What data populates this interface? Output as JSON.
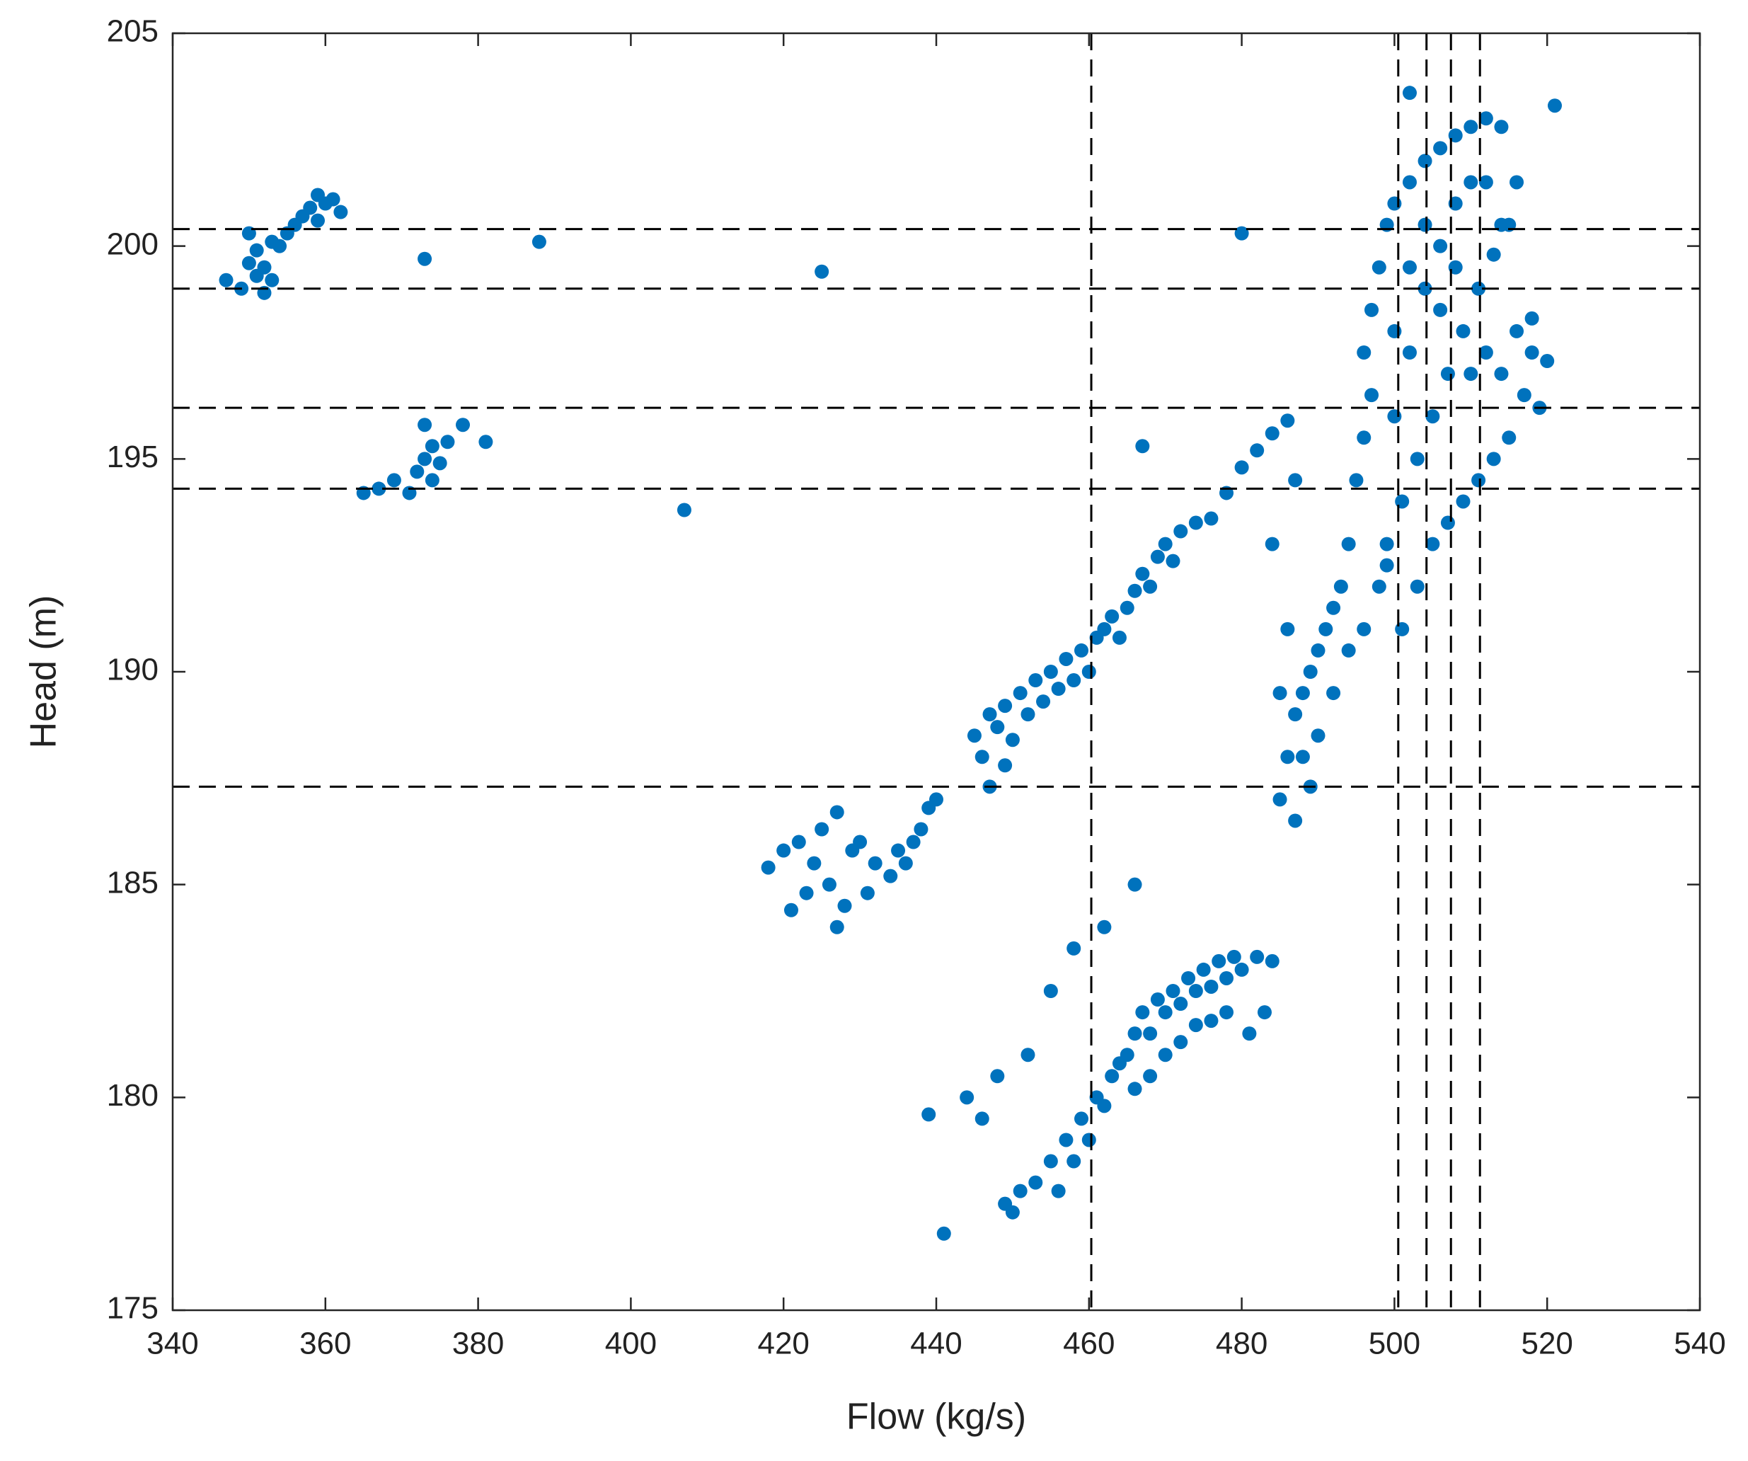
{
  "chart_data": {
    "type": "scatter",
    "xlabel": "Flow (kg/s)",
    "ylabel": "Head (m)",
    "color": "#0072bd",
    "xlim": [
      340,
      540
    ],
    "ylim": [
      175,
      205
    ],
    "xticks": [
      340,
      360,
      380,
      400,
      420,
      440,
      460,
      480,
      500,
      520,
      540
    ],
    "yticks": [
      175,
      180,
      185,
      190,
      195,
      200,
      205
    ],
    "vlines": [
      460.3,
      500.5,
      504.2,
      507.4,
      511.2
    ],
    "hlines": [
      200.4,
      199.0,
      196.2,
      194.3,
      187.3
    ],
    "x": [
      347,
      349,
      350,
      351,
      352,
      353,
      352,
      350,
      353,
      355,
      356,
      357,
      358,
      359,
      360,
      361,
      362,
      354,
      351,
      359,
      365,
      367,
      369,
      371,
      372,
      373,
      374,
      375,
      376,
      378,
      373,
      381,
      374,
      373,
      388,
      425,
      407,
      480,
      467,
      441,
      418,
      420,
      421,
      422,
      424,
      425,
      426,
      427,
      428,
      429,
      430,
      431,
      432,
      434,
      435,
      436,
      437,
      438,
      439,
      440,
      427,
      423,
      445,
      446,
      447,
      448,
      449,
      450,
      451,
      452,
      453,
      454,
      455,
      456,
      457,
      458,
      459,
      460,
      461,
      462,
      463,
      464,
      465,
      466,
      467,
      468,
      469,
      470,
      471,
      472,
      474,
      476,
      478,
      480,
      482,
      484,
      486,
      449,
      447,
      494,
      495,
      496,
      497,
      496,
      497,
      498,
      499,
      500,
      502,
      504,
      506,
      508,
      510,
      512,
      514,
      516,
      515,
      513,
      511,
      509,
      507,
      505,
      503,
      501,
      499,
      498,
      500,
      502,
      504,
      506,
      508,
      510,
      512,
      514,
      516,
      518,
      520,
      517,
      515,
      513,
      511,
      509,
      507,
      505,
      503,
      501,
      499,
      500,
      502,
      504,
      506,
      508,
      510,
      512,
      514,
      518,
      519,
      521,
      502,
      485,
      486,
      487,
      488,
      489,
      490,
      491,
      492,
      493,
      488,
      490,
      492,
      494,
      496,
      489,
      487,
      485,
      486,
      484,
      487,
      449,
      451,
      453,
      455,
      457,
      459,
      461,
      463,
      465,
      466,
      467,
      468,
      469,
      470,
      471,
      472,
      473,
      474,
      475,
      476,
      477,
      478,
      479,
      480,
      482,
      484,
      470,
      472,
      474,
      476,
      478,
      468,
      466,
      464,
      462,
      460,
      458,
      456,
      446,
      444,
      448,
      452,
      455,
      458,
      462,
      466,
      439,
      450,
      481,
      483
    ],
    "values": [
      199.2,
      199.0,
      199.6,
      199.3,
      199.5,
      199.2,
      198.9,
      200.3,
      200.1,
      200.3,
      200.5,
      200.7,
      200.9,
      201.2,
      201.0,
      201.1,
      200.8,
      200.0,
      199.9,
      200.6,
      194.2,
      194.3,
      194.5,
      194.2,
      194.7,
      195.0,
      195.3,
      194.9,
      195.4,
      195.8,
      195.8,
      195.4,
      194.5,
      199.7,
      200.1,
      199.4,
      193.8,
      200.3,
      195.3,
      176.8,
      185.4,
      185.8,
      184.4,
      186.0,
      185.5,
      186.3,
      185.0,
      186.7,
      184.5,
      185.8,
      186.0,
      184.8,
      185.5,
      185.2,
      185.8,
      185.5,
      186.0,
      186.3,
      186.8,
      187.0,
      184.0,
      184.8,
      188.5,
      188.0,
      189.0,
      188.7,
      189.2,
      188.4,
      189.5,
      189.0,
      189.8,
      189.3,
      190.0,
      189.6,
      190.3,
      189.8,
      190.5,
      190.0,
      190.8,
      191.0,
      191.3,
      190.8,
      191.5,
      191.9,
      192.3,
      192.0,
      192.7,
      193.0,
      192.6,
      193.3,
      193.5,
      193.6,
      194.2,
      194.8,
      195.2,
      195.6,
      195.9,
      187.8,
      187.3,
      193,
      194.5,
      195.5,
      196.5,
      197.5,
      198.5,
      199.5,
      200.5,
      201,
      201.5,
      202,
      202.3,
      202.6,
      202.8,
      203,
      202.8,
      201.5,
      200.5,
      199.8,
      199,
      198,
      197,
      196,
      195,
      194,
      193,
      192,
      196,
      197.5,
      199,
      200,
      201,
      201.5,
      201.5,
      200.5,
      198,
      197.5,
      197.3,
      196.5,
      195.5,
      195,
      194.5,
      194,
      193.5,
      193,
      192,
      191,
      192.5,
      198,
      199.5,
      200.5,
      198.5,
      199.5,
      197,
      197.5,
      197,
      198.3,
      196.2,
      203.3,
      203.6,
      187,
      188,
      189,
      189.5,
      190,
      190.5,
      191,
      191.5,
      192,
      188,
      188.5,
      189.5,
      190.5,
      191,
      187.3,
      186.5,
      189.5,
      191,
      193,
      194.5,
      177.5,
      177.8,
      178,
      178.5,
      179,
      179.5,
      180,
      180.5,
      181,
      181.5,
      182,
      181.5,
      182.3,
      182,
      182.5,
      182.2,
      182.8,
      182.5,
      183,
      182.6,
      183.2,
      182.8,
      183.3,
      183,
      183.3,
      183.2,
      181,
      181.3,
      181.7,
      181.8,
      182,
      180.5,
      180.2,
      180.8,
      179.8,
      179,
      178.5,
      177.8,
      179.5,
      180,
      180.5,
      181,
      182.5,
      183.5,
      184,
      185,
      179.6,
      177.3,
      181.5,
      182
    ]
  }
}
